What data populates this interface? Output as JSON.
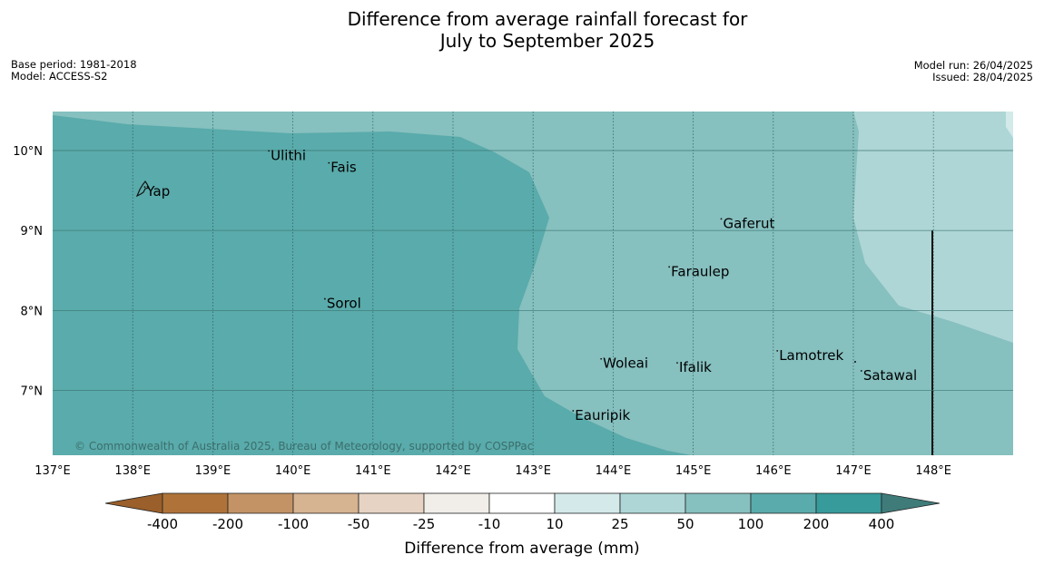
{
  "title": {
    "line1": "Difference from average rainfall forecast for",
    "line2": "July to September 2025"
  },
  "meta_left": {
    "base_period": "Base period: 1981-2018",
    "model": "Model: ACCESS-S2"
  },
  "meta_right": {
    "model_run": "Model run: 26/04/2025",
    "issued": "Issued: 28/04/2025"
  },
  "map": {
    "lon_range": [
      137,
      149
    ],
    "lat_range": [
      6.2,
      10.5
    ],
    "lon_ticks": [
      "137°E",
      "138°E",
      "139°E",
      "140°E",
      "141°E",
      "142°E",
      "143°E",
      "144°E",
      "145°E",
      "146°E",
      "147°E",
      "148°E"
    ],
    "lat_ticks": [
      "7°N",
      "8°N",
      "9°N",
      "10°N"
    ],
    "copyright": "© Commonwealth of Australia 2025, Bureau of Meteorology, supported by COSPPac",
    "places": [
      {
        "name": "Yap",
        "lon": 138.15,
        "lat": 9.5
      },
      {
        "name": "Ulithi",
        "lon": 139.7,
        "lat": 9.95
      },
      {
        "name": "Fais",
        "lon": 140.45,
        "lat": 9.8
      },
      {
        "name": "Gaferut",
        "lon": 145.35,
        "lat": 9.1
      },
      {
        "name": "Faraulep",
        "lon": 144.7,
        "lat": 8.5
      },
      {
        "name": "Sorol",
        "lon": 140.4,
        "lat": 8.1
      },
      {
        "name": "Lamotrek",
        "lon": 146.05,
        "lat": 7.45
      },
      {
        "name": "Satawal",
        "lon": 147.1,
        "lat": 7.2
      },
      {
        "name": "Woleai",
        "lon": 143.85,
        "lat": 7.35
      },
      {
        "name": "Ifalik",
        "lon": 144.8,
        "lat": 7.3
      },
      {
        "name": "Eauripik",
        "lon": 143.5,
        "lat": 6.7
      }
    ],
    "region_colors": {
      "100_to_200": "#5aabab",
      "50_to_100": "#86c0bf",
      "25_to_50": "#aed6d6",
      "10_to_25": "#d4e9e9"
    }
  },
  "colorbar": {
    "title": "Difference from average (mm)",
    "labels": [
      "-400",
      "-200",
      "-100",
      "-50",
      "-25",
      "-10",
      "10",
      "25",
      "50",
      "100",
      "200",
      "400"
    ],
    "colors": [
      "#af7339",
      "#c39365",
      "#d6b391",
      "#e6d3c3",
      "#f1ede8",
      "#ffffff",
      "#d4e9e9",
      "#aed6d6",
      "#86c0bf",
      "#5aabab",
      "#369b9a"
    ],
    "under_color": "#9a5f2a",
    "over_color": "#3f7b79"
  }
}
